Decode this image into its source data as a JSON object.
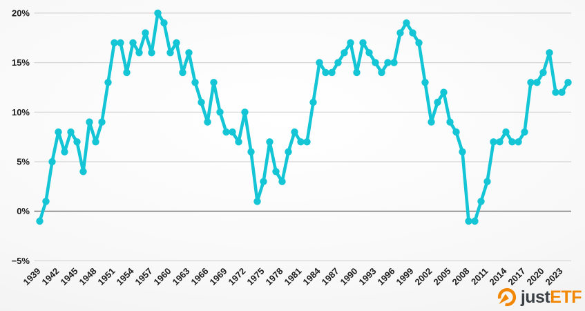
{
  "branding": {
    "logo_text_primary": "just",
    "logo_text_secondary": "ETF",
    "logo_icon": "gauge-icon",
    "brand_orange": "#f28705",
    "brand_dark": "#3a3f44"
  },
  "chart_data": {
    "type": "line",
    "title": "",
    "xlabel": "",
    "ylabel": "",
    "unit": "%",
    "grid": true,
    "legend": "none",
    "start_year": 1939,
    "end_year": 2024,
    "values": [
      -1,
      1,
      5,
      8,
      6,
      8,
      7,
      4,
      9,
      7,
      9,
      13,
      17,
      17,
      14,
      17,
      16,
      18,
      16,
      20,
      19,
      16,
      17,
      14,
      16,
      13,
      11,
      9,
      13,
      10,
      8,
      8,
      7,
      10,
      6,
      1,
      3,
      7,
      4,
      3,
      6,
      8,
      7,
      7,
      11,
      15,
      14,
      14,
      15,
      16,
      17,
      14,
      17,
      16,
      15,
      14,
      15,
      15,
      18,
      19,
      18,
      17,
      13,
      9,
      11,
      12,
      9,
      8,
      6,
      -1,
      -1,
      1,
      3,
      7,
      7,
      8,
      7,
      7,
      8,
      13,
      13,
      14,
      16,
      12,
      12,
      13
    ],
    "x_tick_labels": [
      "1939",
      "1942",
      "1945",
      "1948",
      "1951",
      "1954",
      "1957",
      "1960",
      "1963",
      "1966",
      "1969",
      "1972",
      "1975",
      "1978",
      "1981",
      "1984",
      "1987",
      "1990",
      "1993",
      "1996",
      "1999",
      "2002",
      "2005",
      "2008",
      "2011",
      "2014",
      "2017",
      "2020",
      "2023"
    ],
    "y_ticks": [
      -5,
      0,
      5,
      10,
      15,
      20
    ],
    "y_tick_labels": [
      "−5%",
      "0%",
      "5%",
      "10%",
      "15%",
      "20%"
    ],
    "ylim": [
      -5,
      20
    ],
    "colors": {
      "line": "#14c5d6",
      "marker": "#14c5d6",
      "grid": "#d6d6d6",
      "zero_line": "#8f8f8f",
      "axis_label": "#1c1c1c"
    }
  }
}
